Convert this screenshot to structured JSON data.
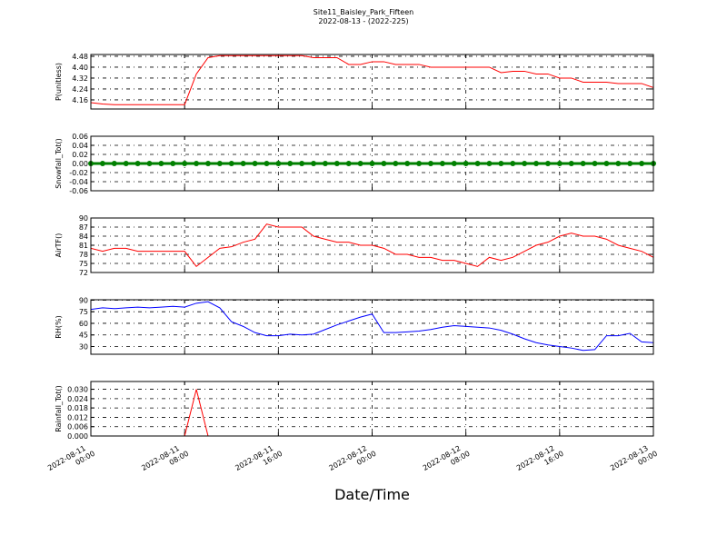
{
  "title": "Site11_Baisley_Park_Fifteen",
  "subtitle": "2022-08-13 - (2022-225)",
  "chart_data": [
    {
      "type": "line",
      "ylabel": "P(unitless)",
      "x": [
        "2022-08-11 00:00",
        "2022-08-11 01:00",
        "2022-08-11 02:00",
        "2022-08-11 03:00",
        "2022-08-11 04:00",
        "2022-08-11 05:00",
        "2022-08-11 06:00",
        "2022-08-11 07:00",
        "2022-08-11 08:00",
        "2022-08-11 09:00",
        "2022-08-11 10:00",
        "2022-08-11 11:00",
        "2022-08-11 12:00",
        "2022-08-11 13:00",
        "2022-08-11 14:00",
        "2022-08-11 15:00",
        "2022-08-11 16:00",
        "2022-08-11 17:00",
        "2022-08-11 18:00",
        "2022-08-11 19:00",
        "2022-08-11 20:00",
        "2022-08-11 21:00",
        "2022-08-11 22:00",
        "2022-08-11 23:00",
        "2022-08-12 00:00",
        "2022-08-12 01:00",
        "2022-08-12 02:00",
        "2022-08-12 03:00",
        "2022-08-12 04:00",
        "2022-08-12 05:00",
        "2022-08-12 06:00",
        "2022-08-12 07:00",
        "2022-08-12 08:00",
        "2022-08-12 09:00",
        "2022-08-12 10:00",
        "2022-08-12 11:00",
        "2022-08-12 12:00",
        "2022-08-12 13:00",
        "2022-08-12 14:00",
        "2022-08-12 15:00",
        "2022-08-12 16:00",
        "2022-08-12 17:00",
        "2022-08-12 18:00",
        "2022-08-12 19:00",
        "2022-08-12 20:00",
        "2022-08-12 21:00",
        "2022-08-12 22:00",
        "2022-08-12 23:00",
        "2022-08-13 00:00"
      ],
      "series": [
        {
          "color": "#ff0000",
          "values": [
            4.14,
            4.13,
            4.125,
            4.125,
            4.125,
            4.125,
            4.125,
            4.125,
            4.125,
            4.35,
            4.47,
            4.485,
            4.485,
            4.485,
            4.485,
            4.485,
            4.485,
            4.485,
            4.485,
            4.47,
            4.47,
            4.47,
            4.42,
            4.42,
            4.44,
            4.44,
            4.42,
            4.42,
            4.42,
            4.4,
            4.4,
            4.4,
            4.4,
            4.4,
            4.4,
            4.36,
            4.37,
            4.37,
            4.35,
            4.35,
            4.32,
            4.32,
            4.29,
            4.29,
            4.29,
            4.28,
            4.28,
            4.28,
            4.25
          ]
        }
      ],
      "xlim": [
        "2022-08-11 00:00",
        "2022-08-13 00:00"
      ],
      "ylim": [
        4.093,
        4.493
      ],
      "yticks": [
        4.16,
        4.24,
        4.32,
        {
          "value": 4.4,
          "label": "4.40"
        },
        4.48
      ],
      "grid": true
    },
    {
      "type": "line",
      "ylabel": "Snowfall_Tot()",
      "x": [
        "2022-08-11 00:00",
        "2022-08-11 01:00",
        "2022-08-11 02:00",
        "2022-08-11 03:00",
        "2022-08-11 04:00",
        "2022-08-11 05:00",
        "2022-08-11 06:00",
        "2022-08-11 07:00",
        "2022-08-11 08:00",
        "2022-08-11 09:00",
        "2022-08-11 10:00",
        "2022-08-11 11:00",
        "2022-08-11 12:00",
        "2022-08-11 13:00",
        "2022-08-11 14:00",
        "2022-08-11 15:00",
        "2022-08-11 16:00",
        "2022-08-11 17:00",
        "2022-08-11 18:00",
        "2022-08-11 19:00",
        "2022-08-11 20:00",
        "2022-08-11 21:00",
        "2022-08-11 22:00",
        "2022-08-11 23:00",
        "2022-08-12 00:00",
        "2022-08-12 01:00",
        "2022-08-12 02:00",
        "2022-08-12 03:00",
        "2022-08-12 04:00",
        "2022-08-12 05:00",
        "2022-08-12 06:00",
        "2022-08-12 07:00",
        "2022-08-12 08:00",
        "2022-08-12 09:00",
        "2022-08-12 10:00",
        "2022-08-12 11:00",
        "2022-08-12 12:00",
        "2022-08-12 13:00",
        "2022-08-12 14:00",
        "2022-08-12 15:00",
        "2022-08-12 16:00",
        "2022-08-12 17:00",
        "2022-08-12 18:00",
        "2022-08-12 19:00",
        "2022-08-12 20:00",
        "2022-08-12 21:00",
        "2022-08-12 22:00",
        "2022-08-12 23:00",
        "2022-08-13 00:00"
      ],
      "series": [
        {
          "color": "#008000",
          "marker": "o",
          "values": [
            0,
            0,
            0,
            0,
            0,
            0,
            0,
            0,
            0,
            0,
            0,
            0,
            0,
            0,
            0,
            0,
            0,
            0,
            0,
            0,
            0,
            0,
            0,
            0,
            0,
            0,
            0,
            0,
            0,
            0,
            0,
            0,
            0,
            0,
            0,
            0,
            0,
            0,
            0,
            0,
            0,
            0,
            0,
            0,
            0,
            0,
            0,
            0,
            0
          ]
        }
      ],
      "xlim": [
        "2022-08-11 00:00",
        "2022-08-13 00:00"
      ],
      "ylim": [
        -0.06,
        0.06
      ],
      "yticks": [
        -0.06,
        -0.04,
        -0.02,
        {
          "value": 0,
          "label": "0.00"
        },
        0.02,
        0.04,
        0.06
      ],
      "grid": true
    },
    {
      "type": "line",
      "ylabel": "AirTF()",
      "x": [
        "2022-08-11 00:00",
        "2022-08-11 01:00",
        "2022-08-11 02:00",
        "2022-08-11 03:00",
        "2022-08-11 04:00",
        "2022-08-11 05:00",
        "2022-08-11 06:00",
        "2022-08-11 07:00",
        "2022-08-11 08:00",
        "2022-08-11 09:00",
        "2022-08-11 10:00",
        "2022-08-11 11:00",
        "2022-08-11 12:00",
        "2022-08-11 13:00",
        "2022-08-11 14:00",
        "2022-08-11 15:00",
        "2022-08-11 16:00",
        "2022-08-11 17:00",
        "2022-08-11 18:00",
        "2022-08-11 19:00",
        "2022-08-11 20:00",
        "2022-08-11 21:00",
        "2022-08-11 22:00",
        "2022-08-11 23:00",
        "2022-08-12 00:00",
        "2022-08-12 01:00",
        "2022-08-12 02:00",
        "2022-08-12 03:00",
        "2022-08-12 04:00",
        "2022-08-12 05:00",
        "2022-08-12 06:00",
        "2022-08-12 07:00",
        "2022-08-12 08:00",
        "2022-08-12 09:00",
        "2022-08-12 10:00",
        "2022-08-12 11:00",
        "2022-08-12 12:00",
        "2022-08-12 13:00",
        "2022-08-12 14:00",
        "2022-08-12 15:00",
        "2022-08-12 16:00",
        "2022-08-12 17:00",
        "2022-08-12 18:00",
        "2022-08-12 19:00",
        "2022-08-12 20:00",
        "2022-08-12 21:00",
        "2022-08-12 22:00",
        "2022-08-12 23:00",
        "2022-08-13 00:00"
      ],
      "series": [
        {
          "color": "#ff0000",
          "values": [
            80,
            79,
            80,
            80,
            79,
            79,
            79,
            79,
            79,
            74,
            77,
            80,
            80.5,
            82,
            83,
            88,
            87,
            87,
            87,
            84,
            83,
            82,
            82,
            81,
            81,
            80,
            78,
            78,
            77,
            77,
            76,
            76,
            75,
            74,
            77,
            76,
            77,
            79,
            81,
            82,
            84,
            85,
            84,
            84,
            83,
            81,
            80,
            79,
            77
          ]
        }
      ],
      "xlim": [
        "2022-08-11 00:00",
        "2022-08-13 00:00"
      ],
      "ylim": [
        72,
        90
      ],
      "yticks": [
        72,
        75,
        78,
        81,
        84,
        87,
        90
      ],
      "grid": true
    },
    {
      "type": "line",
      "ylabel": "RH(%)",
      "x": [
        "2022-08-11 00:00",
        "2022-08-11 01:00",
        "2022-08-11 02:00",
        "2022-08-11 03:00",
        "2022-08-11 04:00",
        "2022-08-11 05:00",
        "2022-08-11 06:00",
        "2022-08-11 07:00",
        "2022-08-11 08:00",
        "2022-08-11 09:00",
        "2022-08-11 10:00",
        "2022-08-11 11:00",
        "2022-08-11 12:00",
        "2022-08-11 13:00",
        "2022-08-11 14:00",
        "2022-08-11 15:00",
        "2022-08-11 16:00",
        "2022-08-11 17:00",
        "2022-08-11 18:00",
        "2022-08-11 19:00",
        "2022-08-11 20:00",
        "2022-08-11 21:00",
        "2022-08-11 22:00",
        "2022-08-11 23:00",
        "2022-08-12 00:00",
        "2022-08-12 01:00",
        "2022-08-12 02:00",
        "2022-08-12 03:00",
        "2022-08-12 04:00",
        "2022-08-12 05:00",
        "2022-08-12 06:00",
        "2022-08-12 07:00",
        "2022-08-12 08:00",
        "2022-08-12 09:00",
        "2022-08-12 10:00",
        "2022-08-12 11:00",
        "2022-08-12 12:00",
        "2022-08-12 13:00",
        "2022-08-12 14:00",
        "2022-08-12 15:00",
        "2022-08-12 16:00",
        "2022-08-12 17:00",
        "2022-08-12 18:00",
        "2022-08-12 19:00",
        "2022-08-12 20:00",
        "2022-08-12 21:00",
        "2022-08-12 22:00",
        "2022-08-12 23:00",
        "2022-08-13 00:00"
      ],
      "series": [
        {
          "color": "#0000ff",
          "values": [
            78,
            80,
            79,
            80,
            81,
            80,
            81,
            82,
            81,
            86,
            88,
            80,
            62,
            56,
            48,
            44,
            44,
            46,
            45,
            46,
            52,
            58,
            63,
            68,
            72,
            48,
            48,
            49,
            50,
            52,
            55,
            57,
            56,
            55,
            54,
            51,
            46,
            40,
            35,
            32,
            30,
            28,
            25,
            26,
            44,
            44,
            47,
            36,
            35
          ]
        }
      ],
      "xlim": [
        "2022-08-11 00:00",
        "2022-08-13 00:00"
      ],
      "ylim": [
        20,
        90.5
      ],
      "yticks": [
        30,
        45,
        60,
        75,
        90
      ],
      "grid": true
    },
    {
      "type": "line",
      "ylabel": "Rainfall_Tot()",
      "xlabel": "Date/Time",
      "x": [
        "2022-08-11 00:00",
        "2022-08-11 01:00",
        "2022-08-11 02:00",
        "2022-08-11 03:00",
        "2022-08-11 04:00",
        "2022-08-11 05:00",
        "2022-08-11 06:00",
        "2022-08-11 07:00",
        "2022-08-11 08:00",
        "2022-08-11 09:00",
        "2022-08-11 10:00",
        "2022-08-11 11:00",
        "2022-08-11 12:00",
        "2022-08-11 13:00",
        "2022-08-11 14:00",
        "2022-08-11 15:00",
        "2022-08-11 16:00",
        "2022-08-11 17:00",
        "2022-08-11 18:00",
        "2022-08-11 19:00",
        "2022-08-11 20:00",
        "2022-08-11 21:00",
        "2022-08-11 22:00",
        "2022-08-11 23:00",
        "2022-08-12 00:00",
        "2022-08-12 01:00",
        "2022-08-12 02:00",
        "2022-08-12 03:00",
        "2022-08-12 04:00",
        "2022-08-12 05:00",
        "2022-08-12 06:00",
        "2022-08-12 07:00",
        "2022-08-12 08:00",
        "2022-08-12 09:00",
        "2022-08-12 10:00",
        "2022-08-12 11:00",
        "2022-08-12 12:00",
        "2022-08-12 13:00",
        "2022-08-12 14:00",
        "2022-08-12 15:00",
        "2022-08-12 16:00",
        "2022-08-12 17:00",
        "2022-08-12 18:00",
        "2022-08-12 19:00",
        "2022-08-12 20:00",
        "2022-08-12 21:00",
        "2022-08-12 22:00",
        "2022-08-12 23:00",
        "2022-08-13 00:00"
      ],
      "series": [
        {
          "color": "#ff0000",
          "values": [
            0,
            0,
            0,
            0,
            0,
            0,
            0,
            0,
            0,
            0.03,
            0,
            0,
            0,
            0,
            0,
            0,
            0,
            0,
            0,
            0,
            0,
            0,
            0,
            0,
            0,
            0,
            0,
            0,
            0,
            0,
            0,
            0,
            0,
            0,
            0,
            0,
            0,
            0,
            0,
            0,
            0,
            0,
            0,
            0,
            0,
            0,
            0,
            0,
            0
          ]
        }
      ],
      "xlim": [
        "2022-08-11 00:00",
        "2022-08-13 00:00"
      ],
      "ylim": [
        0,
        0.035
      ],
      "xticks": [
        "2022-08-11 00:00",
        "2022-08-11 08:00",
        "2022-08-11 16:00",
        "2022-08-12 00:00",
        "2022-08-12 08:00",
        "2022-08-12 16:00",
        "2022-08-13 00:00"
      ],
      "yticks": [
        {
          "value": 0,
          "label": "0.000"
        },
        0.006,
        0.012,
        0.018,
        0.024,
        {
          "value": 0.03,
          "label": "0.030"
        }
      ],
      "grid": true
    }
  ]
}
